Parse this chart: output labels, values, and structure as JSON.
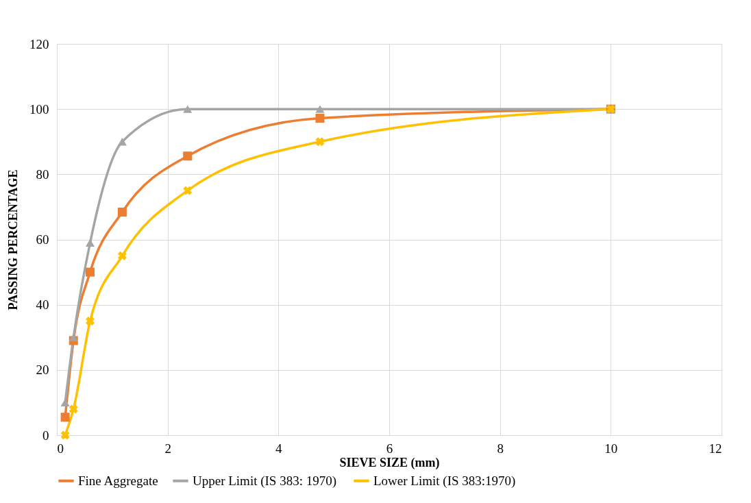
{
  "chart_data": {
    "type": "line",
    "xlabel": "SIEVE SIZE (mm)",
    "ylabel": "PASSING PERCENTAGE",
    "x": [
      0.15,
      0.3,
      0.6,
      1.18,
      2.36,
      4.75,
      10
    ],
    "series": [
      {
        "name": "Fine Aggregate",
        "color": "#ed7d31",
        "marker": "square",
        "values": [
          5.5,
          29,
          50,
          68.4,
          85.6,
          97.2,
          100
        ]
      },
      {
        "name": "Upper Limit (IS  383: 1970)",
        "color": "#a5a5a5",
        "marker": "triangle",
        "values": [
          10,
          30,
          59,
          90,
          100,
          100,
          100
        ]
      },
      {
        "name": "Lower Limit (IS  383:1970)",
        "color": "#ffc000",
        "marker": "cross",
        "values": [
          0,
          8,
          35,
          55,
          75,
          90,
          100
        ]
      }
    ],
    "xlim": [
      0,
      12
    ],
    "xticks": [
      0,
      2,
      4,
      6,
      8,
      10,
      12
    ],
    "ylim": [
      0,
      120
    ],
    "yticks": [
      0,
      20,
      40,
      60,
      80,
      100,
      120
    ],
    "grid": true,
    "legend": "bottom",
    "line_style": "solid"
  }
}
